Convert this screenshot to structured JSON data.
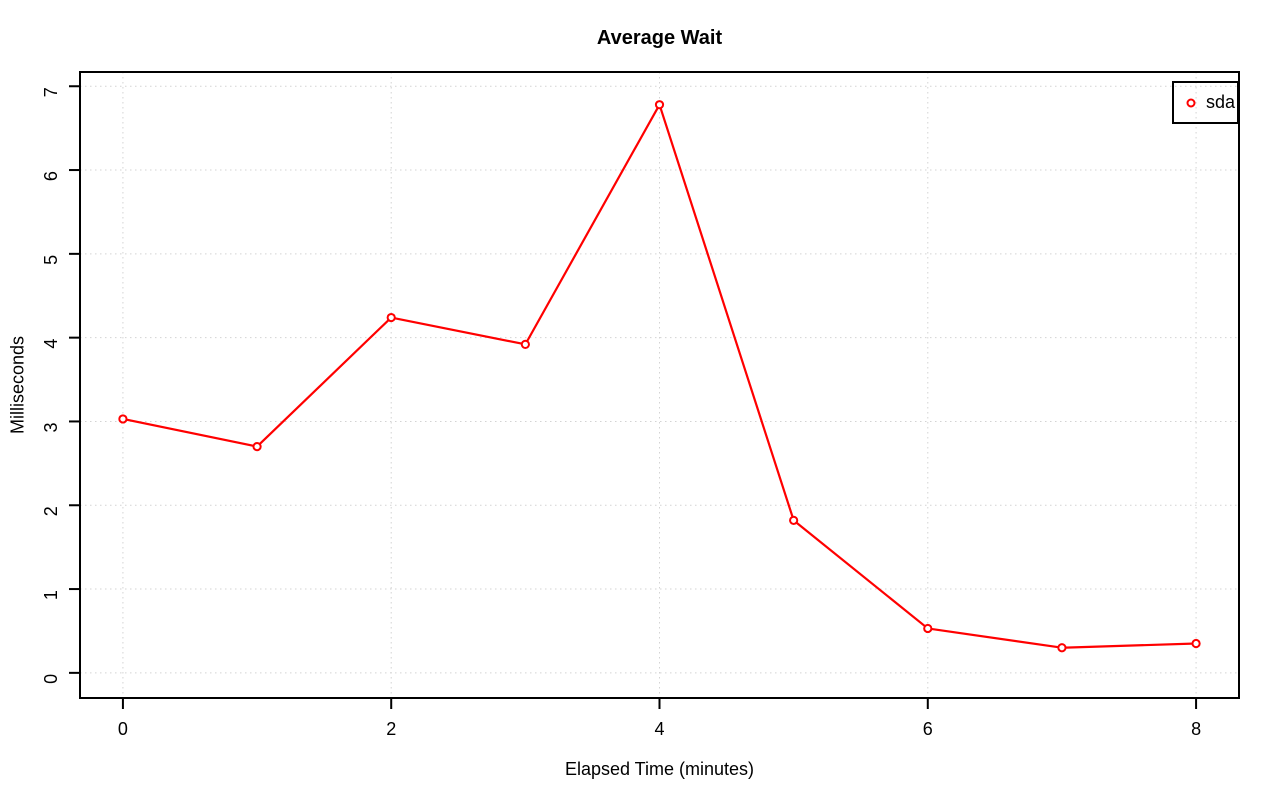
{
  "page": {
    "background": "#ffffff"
  },
  "chart_data": {
    "type": "line",
    "title": "Average Wait",
    "xlabel": "Elapsed Time (minutes)",
    "ylabel": "Milliseconds",
    "series": [
      {
        "name": "sda",
        "color": "#ff0000",
        "marker": "open-circle",
        "x": [
          0,
          1,
          2,
          3,
          4,
          5,
          6,
          7,
          8
        ],
        "y": [
          3.03,
          2.7,
          4.24,
          3.92,
          6.78,
          1.82,
          0.53,
          0.3,
          0.35
        ]
      }
    ],
    "xticks": [
      "0",
      "2",
      "4",
      "6",
      "8"
    ],
    "xtick_values": [
      0,
      2,
      4,
      6,
      8
    ],
    "yticks": [
      "0",
      "1",
      "2",
      "3",
      "4",
      "5",
      "6",
      "7"
    ],
    "ytick_values": [
      0,
      1,
      2,
      3,
      4,
      5,
      6,
      7
    ],
    "xlim": [
      -0.32,
      8.32
    ],
    "ylim": [
      -0.3,
      7.17
    ],
    "grid": true,
    "grid_color": "#d3d3d3",
    "grid_style": "dotted",
    "axis_color": "#000000",
    "legend": {
      "position": "topright",
      "entries": [
        "sda"
      ]
    }
  }
}
